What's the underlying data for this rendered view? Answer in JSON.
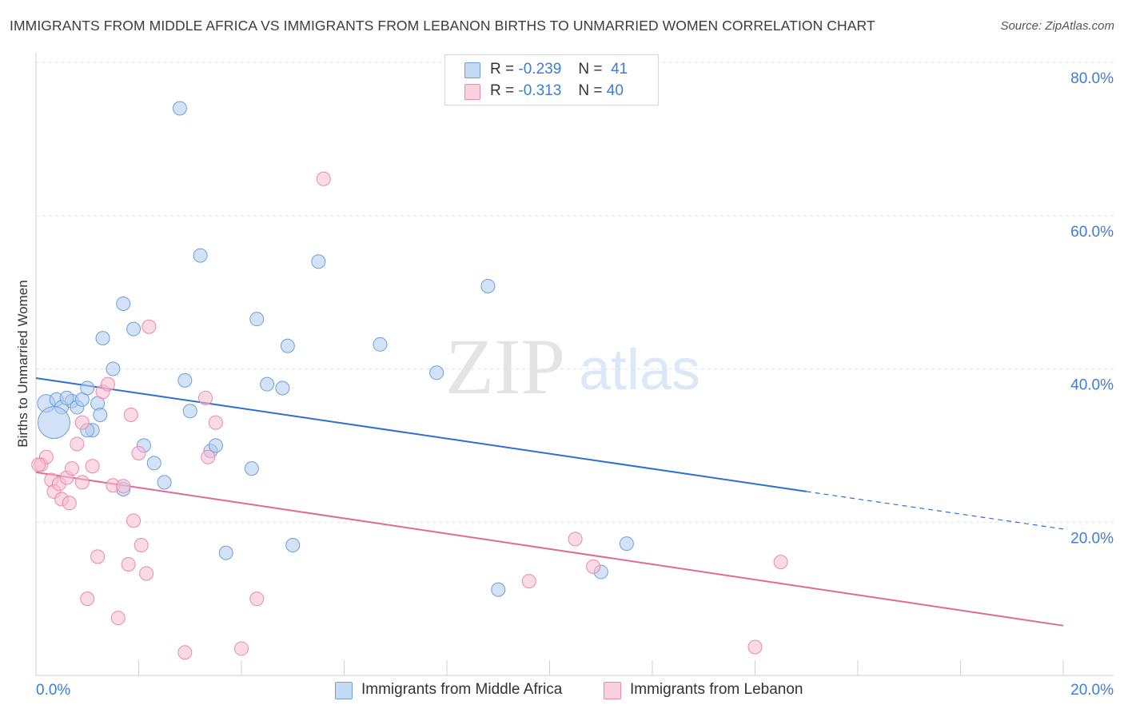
{
  "title": "IMMIGRANTS FROM MIDDLE AFRICA VS IMMIGRANTS FROM LEBANON BIRTHS TO UNMARRIED WOMEN CORRELATION CHART",
  "source": "Source: ZipAtlas.com",
  "watermark": {
    "zip": "ZIP",
    "atlas": "atlas"
  },
  "legend": {
    "blue": {
      "r_label": "R =",
      "r_value": "-0.239",
      "n_label": "N =",
      "n_value": "41"
    },
    "pink": {
      "r_label": "R =",
      "r_value": "-0.313",
      "n_label": "N =",
      "n_value": "40"
    }
  },
  "colors": {
    "blue_fill": "#aecbf0",
    "blue_stroke": "#6f9fd8",
    "blue_line": "#2f6fcf",
    "pink_fill": "#f7bcd0",
    "pink_stroke": "#e88aab",
    "pink_line": "#e06a96",
    "axis_label": "#3b7dd8",
    "grid": "#e3e3e3"
  },
  "chart_data": {
    "type": "scatter",
    "xlabel": "",
    "ylabel": "Births to Unmarried Women",
    "xlim": [
      0,
      20
    ],
    "ylim": [
      0,
      80
    ],
    "x_tick_labels": [
      "0.0%",
      "20.0%"
    ],
    "y_tick_labels": [
      "80.0%",
      "60.0%",
      "40.0%",
      "20.0%"
    ],
    "y_ticks": [
      80,
      60,
      40,
      20
    ],
    "series": [
      {
        "name": "Immigrants from Middle Africa",
        "color": "blue",
        "points": [
          [
            0.2,
            35.5
          ],
          [
            0.4,
            36.0
          ],
          [
            0.5,
            35.0
          ],
          [
            0.7,
            35.8
          ],
          [
            0.8,
            35.0
          ],
          [
            0.9,
            36.0
          ],
          [
            1.0,
            37.5
          ],
          [
            1.1,
            32.0
          ],
          [
            1.2,
            35.5
          ],
          [
            1.3,
            44.0
          ],
          [
            1.5,
            40.0
          ],
          [
            1.7,
            48.5
          ],
          [
            1.9,
            45.2
          ],
          [
            2.1,
            30.0
          ],
          [
            2.3,
            27.7
          ],
          [
            2.5,
            25.2
          ],
          [
            2.8,
            74.0
          ],
          [
            2.9,
            38.5
          ],
          [
            3.0,
            34.5
          ],
          [
            3.2,
            54.8
          ],
          [
            3.4,
            29.3
          ],
          [
            3.5,
            30.0
          ],
          [
            3.7,
            16.0
          ],
          [
            4.2,
            27.0
          ],
          [
            4.3,
            46.5
          ],
          [
            4.5,
            38.0
          ],
          [
            4.8,
            37.5
          ],
          [
            4.9,
            43.0
          ],
          [
            5.0,
            17.0
          ],
          [
            5.5,
            54.0
          ],
          [
            6.7,
            43.2
          ],
          [
            7.8,
            39.5
          ],
          [
            8.8,
            50.8
          ],
          [
            9.0,
            11.2
          ],
          [
            11.0,
            13.5
          ],
          [
            11.5,
            17.2
          ],
          [
            0.35,
            33.0
          ],
          [
            0.6,
            36.2
          ],
          [
            1.25,
            34.0
          ],
          [
            1.0,
            32.0
          ],
          [
            1.7,
            24.3
          ]
        ]
      },
      {
        "name": "Immigrants from Lebanon",
        "color": "pink",
        "points": [
          [
            0.1,
            27.5
          ],
          [
            0.2,
            28.5
          ],
          [
            0.3,
            25.5
          ],
          [
            0.35,
            24.0
          ],
          [
            0.45,
            25.0
          ],
          [
            0.5,
            23.0
          ],
          [
            0.6,
            25.8
          ],
          [
            0.65,
            22.5
          ],
          [
            0.7,
            27.0
          ],
          [
            0.8,
            30.2
          ],
          [
            0.9,
            25.2
          ],
          [
            0.9,
            33.0
          ],
          [
            1.0,
            10.0
          ],
          [
            1.1,
            27.3
          ],
          [
            1.2,
            15.5
          ],
          [
            1.3,
            37.0
          ],
          [
            1.4,
            38.0
          ],
          [
            1.5,
            24.8
          ],
          [
            1.6,
            7.5
          ],
          [
            1.7,
            24.7
          ],
          [
            1.8,
            14.5
          ],
          [
            1.85,
            34.0
          ],
          [
            1.9,
            20.2
          ],
          [
            2.0,
            29.0
          ],
          [
            2.05,
            17.0
          ],
          [
            2.15,
            13.3
          ],
          [
            2.2,
            45.5
          ],
          [
            2.9,
            3.0
          ],
          [
            3.3,
            36.2
          ],
          [
            3.35,
            28.5
          ],
          [
            3.5,
            33.0
          ],
          [
            4.0,
            3.5
          ],
          [
            4.3,
            10.0
          ],
          [
            5.6,
            64.8
          ],
          [
            9.6,
            12.3
          ],
          [
            10.5,
            17.8
          ],
          [
            10.85,
            14.2
          ],
          [
            14.0,
            3.7
          ],
          [
            14.5,
            14.8
          ],
          [
            0.05,
            27.5
          ]
        ]
      }
    ],
    "trend_lines": [
      {
        "series": "Immigrants from Middle Africa",
        "x0": 0,
        "y0": 38.8,
        "x1": 15.0,
        "y1": 24.0,
        "dashed_to_x": 20,
        "dashed_to_y": 19.1
      },
      {
        "series": "Immigrants from Lebanon",
        "x0": 0,
        "y0": 26.5,
        "x1": 20,
        "y1": 6.5
      }
    ],
    "legend_position": "top-center"
  }
}
